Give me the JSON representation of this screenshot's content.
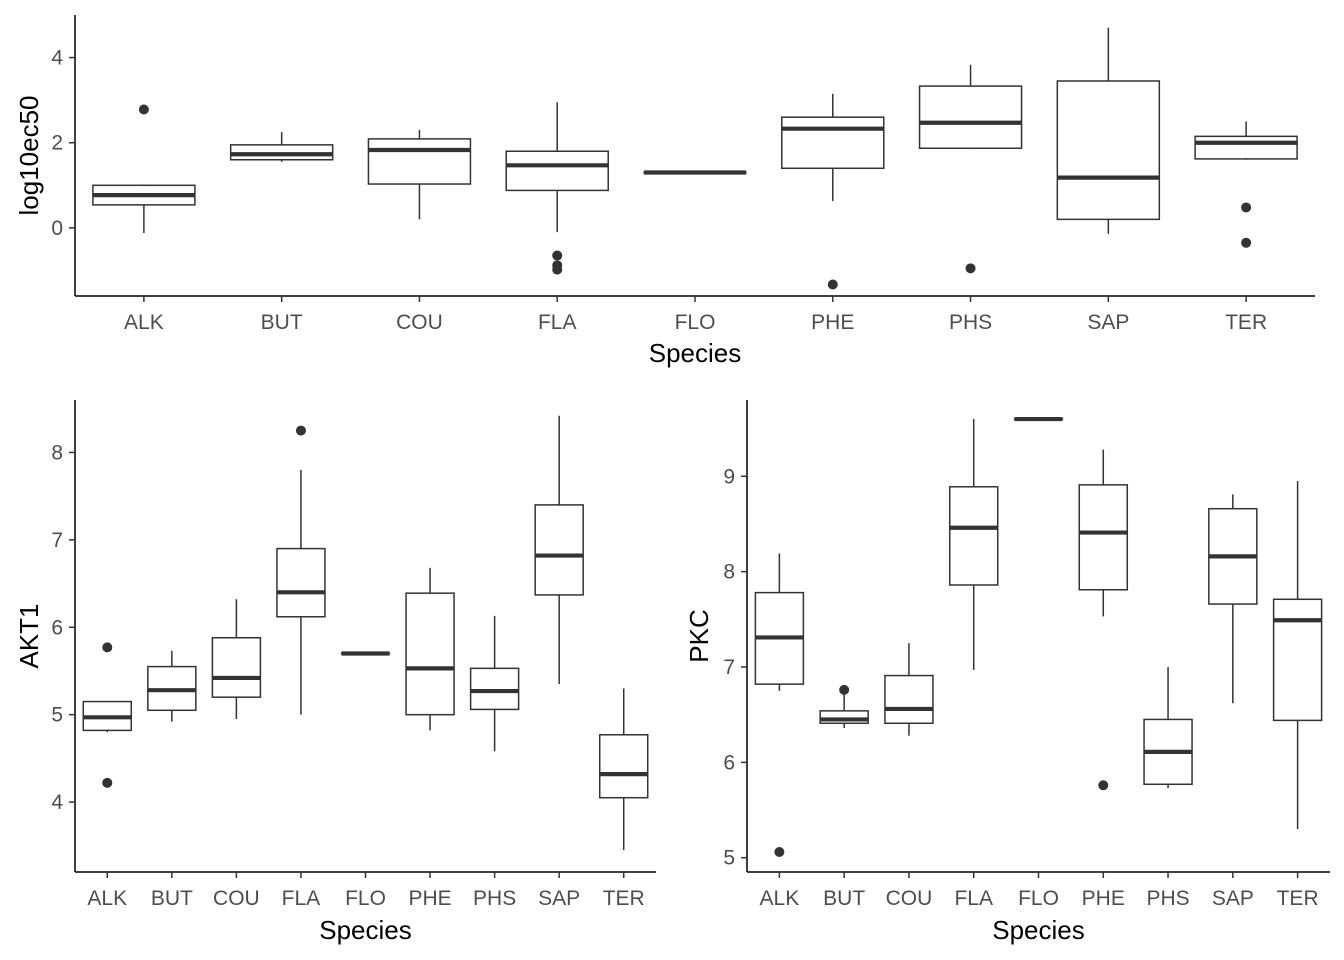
{
  "chart_data": [
    {
      "type": "box",
      "xlabel": "Species",
      "ylabel": "log10ec50",
      "ylim": [
        -1.6,
        5.0
      ],
      "yticks": [
        0,
        2,
        4
      ],
      "categories": [
        "ALK",
        "BUT",
        "COU",
        "FLA",
        "FLO",
        "PHE",
        "PHS",
        "SAP",
        "TER"
      ],
      "boxes": [
        {
          "category": "ALK",
          "min": -0.12,
          "q1": 0.54,
          "median": 0.77,
          "q3": 1.0,
          "max": 1.02,
          "outliers": [
            2.78
          ]
        },
        {
          "category": "BUT",
          "min": 1.55,
          "q1": 1.6,
          "median": 1.73,
          "q3": 1.95,
          "max": 2.25,
          "outliers": []
        },
        {
          "category": "COU",
          "min": 0.2,
          "q1": 1.03,
          "median": 1.83,
          "q3": 2.09,
          "max": 2.3,
          "outliers": []
        },
        {
          "category": "FLA",
          "min": -0.1,
          "q1": 0.88,
          "median": 1.47,
          "q3": 1.8,
          "max": 2.95,
          "outliers": [
            -0.65,
            -0.88,
            -0.98
          ]
        },
        {
          "category": "FLO",
          "min": 1.3,
          "q1": 1.3,
          "median": 1.3,
          "q3": 1.3,
          "max": 1.3,
          "outliers": []
        },
        {
          "category": "PHE",
          "min": 0.63,
          "q1": 1.4,
          "median": 2.33,
          "q3": 2.6,
          "max": 3.15,
          "outliers": [
            -1.33
          ]
        },
        {
          "category": "PHS",
          "min": 1.85,
          "q1": 1.87,
          "median": 2.47,
          "q3": 3.33,
          "max": 3.83,
          "outliers": [
            -0.95
          ]
        },
        {
          "category": "SAP",
          "min": -0.14,
          "q1": 0.2,
          "median": 1.18,
          "q3": 3.45,
          "max": 4.7,
          "outliers": []
        },
        {
          "category": "TER",
          "min": 1.6,
          "q1": 1.62,
          "median": 2.0,
          "q3": 2.15,
          "max": 2.5,
          "outliers": [
            0.48,
            -0.35
          ]
        }
      ]
    },
    {
      "type": "box",
      "xlabel": "Species",
      "ylabel": "AKT1",
      "ylim": [
        3.2,
        8.6
      ],
      "yticks": [
        4,
        5,
        6,
        7,
        8
      ],
      "categories": [
        "ALK",
        "BUT",
        "COU",
        "FLA",
        "FLO",
        "PHE",
        "PHS",
        "SAP",
        "TER"
      ],
      "boxes": [
        {
          "category": "ALK",
          "min": 4.8,
          "q1": 4.82,
          "median": 4.97,
          "q3": 5.15,
          "max": 5.15,
          "outliers": [
            5.77,
            4.22
          ]
        },
        {
          "category": "BUT",
          "min": 4.92,
          "q1": 5.05,
          "median": 5.28,
          "q3": 5.55,
          "max": 5.73,
          "outliers": []
        },
        {
          "category": "COU",
          "min": 4.95,
          "q1": 5.2,
          "median": 5.42,
          "q3": 5.88,
          "max": 6.32,
          "outliers": []
        },
        {
          "category": "FLA",
          "min": 5.0,
          "q1": 6.12,
          "median": 6.4,
          "q3": 6.9,
          "max": 7.8,
          "outliers": [
            8.25
          ]
        },
        {
          "category": "FLO",
          "min": 5.7,
          "q1": 5.7,
          "median": 5.7,
          "q3": 5.7,
          "max": 5.7,
          "outliers": []
        },
        {
          "category": "PHE",
          "min": 4.82,
          "q1": 5.0,
          "median": 5.53,
          "q3": 6.39,
          "max": 6.68,
          "outliers": []
        },
        {
          "category": "PHS",
          "min": 4.58,
          "q1": 5.06,
          "median": 5.27,
          "q3": 5.53,
          "max": 6.13,
          "outliers": []
        },
        {
          "category": "SAP",
          "min": 5.35,
          "q1": 6.37,
          "median": 6.82,
          "q3": 7.4,
          "max": 8.42,
          "outliers": []
        },
        {
          "category": "TER",
          "min": 3.45,
          "q1": 4.05,
          "median": 4.32,
          "q3": 4.77,
          "max": 5.3,
          "outliers": []
        }
      ]
    },
    {
      "type": "box",
      "xlabel": "Species",
      "ylabel": "PKC",
      "ylim": [
        4.85,
        9.8
      ],
      "yticks": [
        5,
        6,
        7,
        8,
        9
      ],
      "categories": [
        "ALK",
        "BUT",
        "COU",
        "FLA",
        "FLO",
        "PHE",
        "PHS",
        "SAP",
        "TER"
      ],
      "boxes": [
        {
          "category": "ALK",
          "min": 6.75,
          "q1": 6.82,
          "median": 7.31,
          "q3": 7.78,
          "max": 8.19,
          "outliers": [
            5.06
          ]
        },
        {
          "category": "BUT",
          "min": 6.36,
          "q1": 6.41,
          "median": 6.45,
          "q3": 6.54,
          "max": 6.75,
          "outliers": [
            6.76
          ]
        },
        {
          "category": "COU",
          "min": 6.28,
          "q1": 6.41,
          "median": 6.56,
          "q3": 6.91,
          "max": 7.25,
          "outliers": []
        },
        {
          "category": "FLA",
          "min": 6.97,
          "q1": 7.86,
          "median": 8.46,
          "q3": 8.89,
          "max": 9.6,
          "outliers": []
        },
        {
          "category": "FLO",
          "min": 9.6,
          "q1": 9.6,
          "median": 9.6,
          "q3": 9.6,
          "max": 9.6,
          "outliers": []
        },
        {
          "category": "PHE",
          "min": 7.53,
          "q1": 7.81,
          "median": 8.41,
          "q3": 8.91,
          "max": 9.28,
          "outliers": [
            5.76
          ]
        },
        {
          "category": "PHS",
          "min": 5.73,
          "q1": 5.77,
          "median": 6.11,
          "q3": 6.45,
          "max": 7.0,
          "outliers": []
        },
        {
          "category": "SAP",
          "min": 6.62,
          "q1": 7.66,
          "median": 8.16,
          "q3": 8.66,
          "max": 8.81,
          "outliers": []
        },
        {
          "category": "TER",
          "min": 5.3,
          "q1": 6.44,
          "median": 7.49,
          "q3": 7.71,
          "max": 8.95,
          "outliers": []
        }
      ]
    }
  ]
}
